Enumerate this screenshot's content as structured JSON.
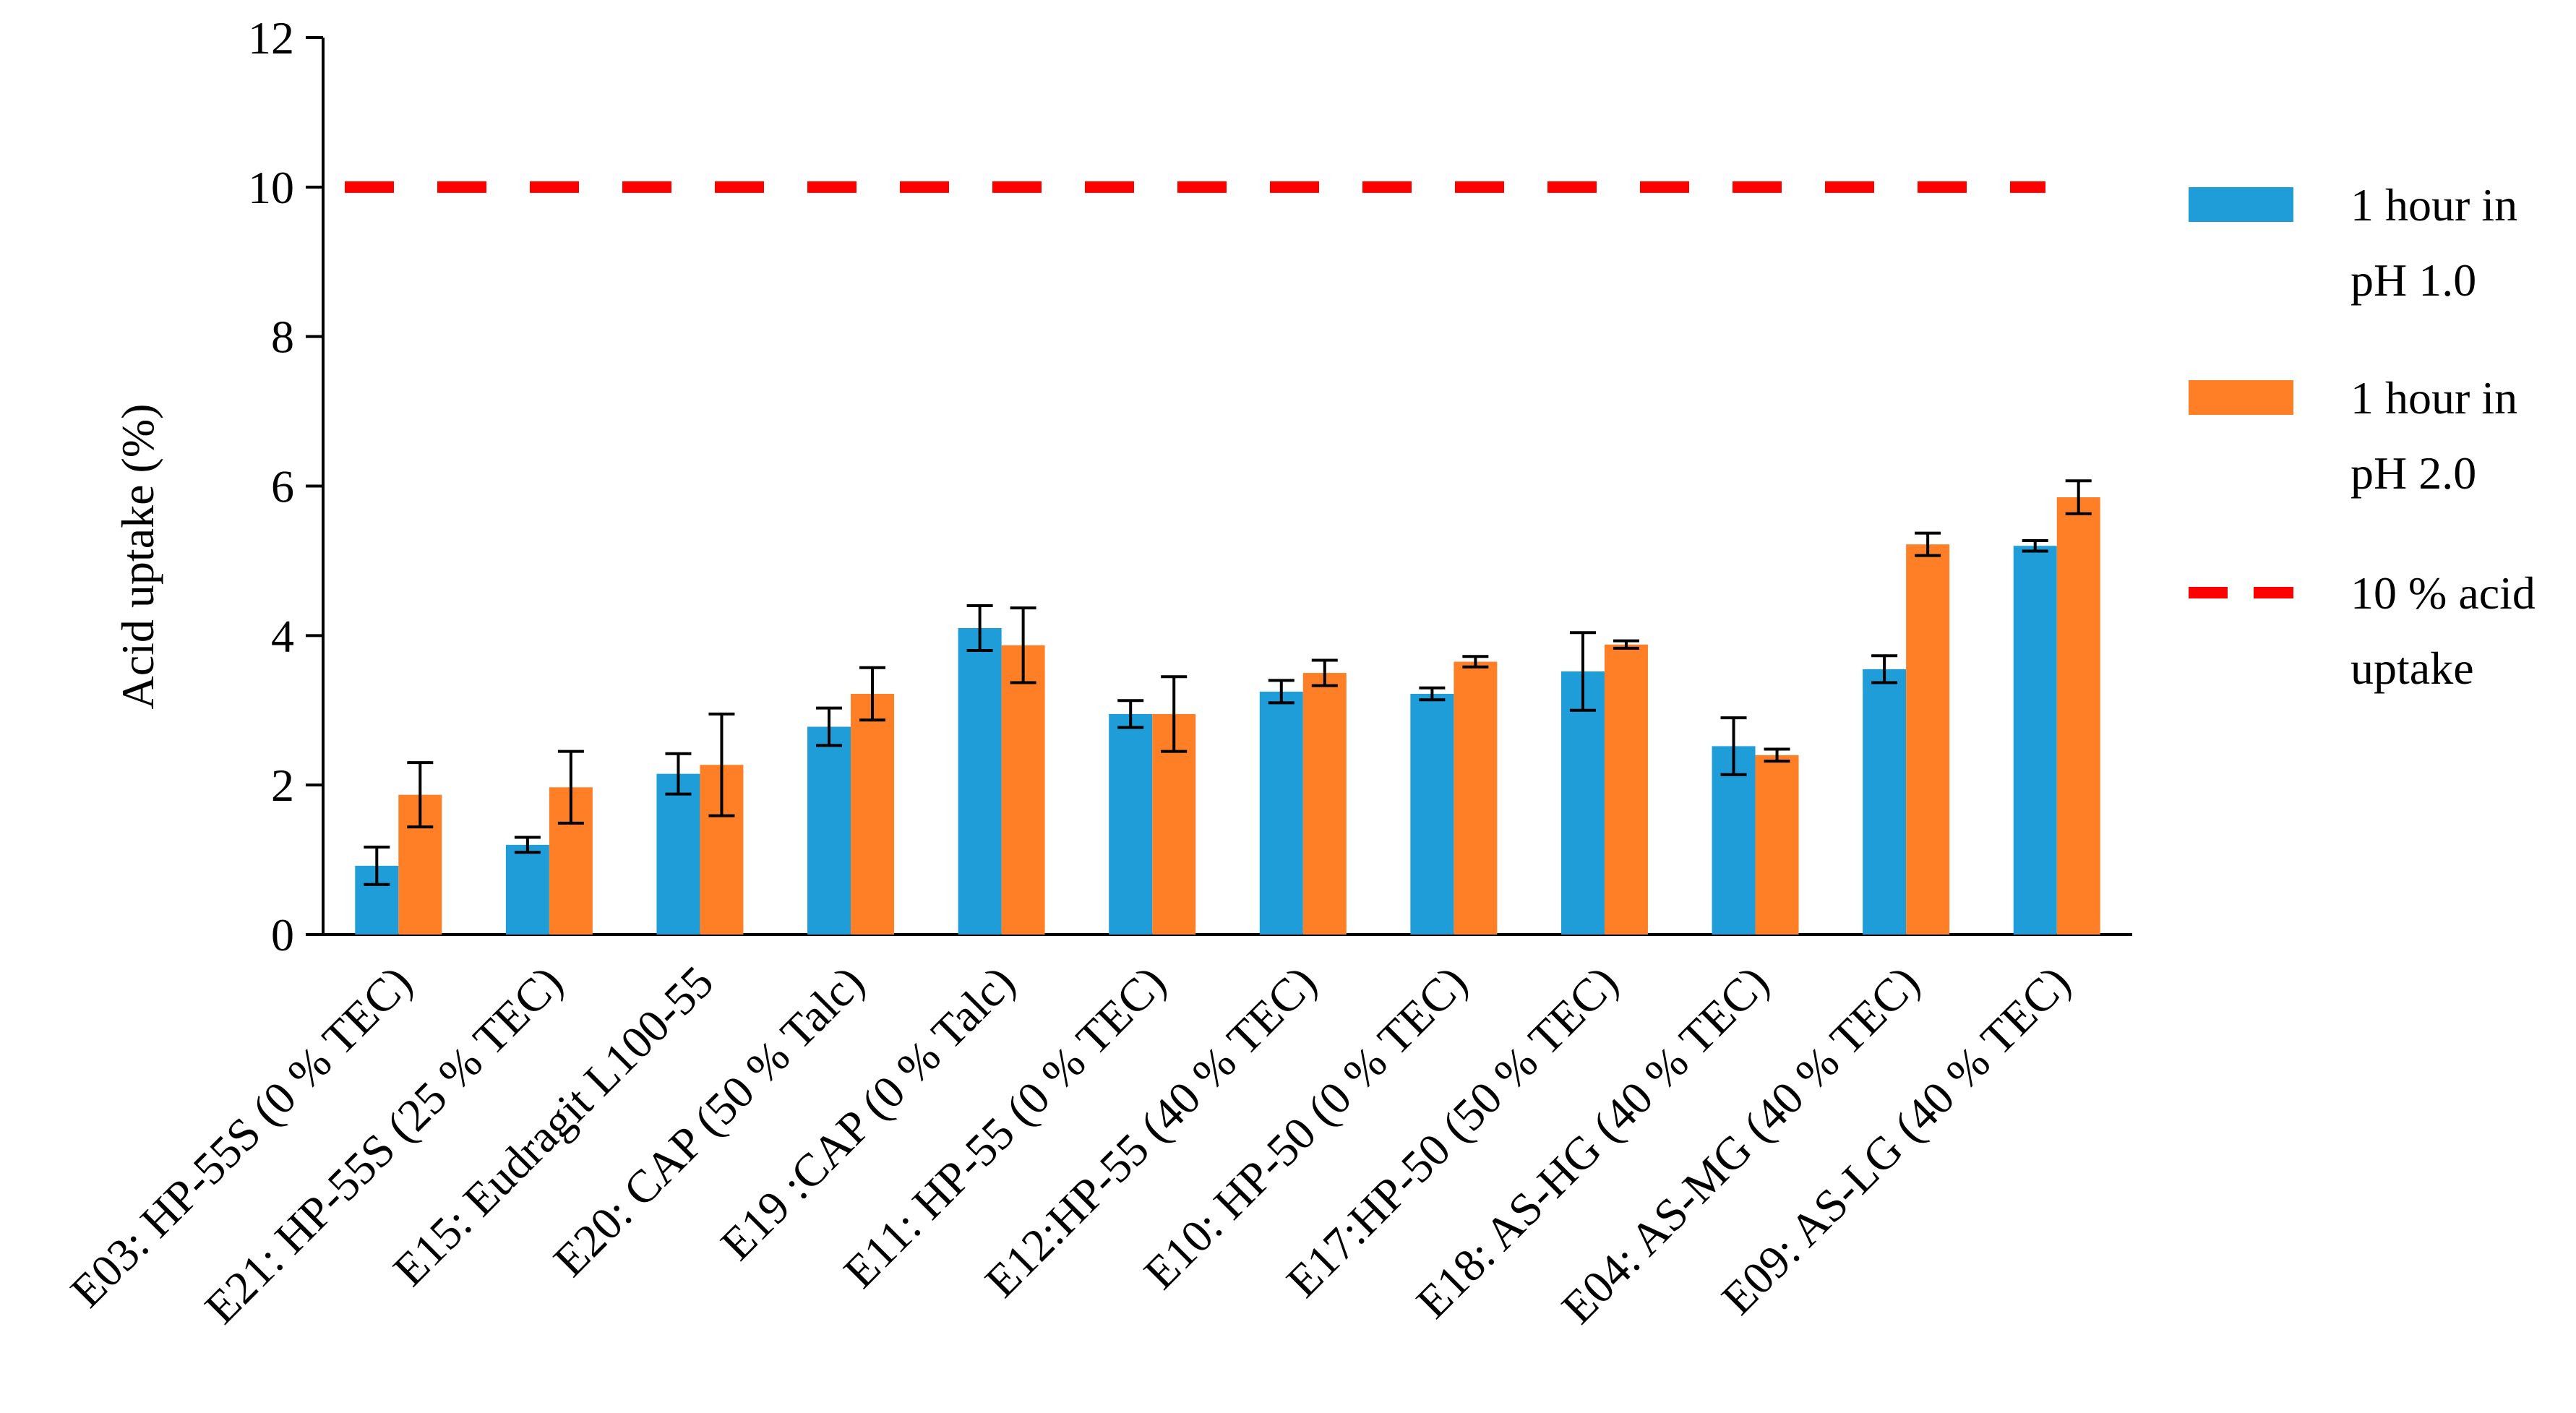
{
  "chart_data": {
    "type": "bar",
    "title": "",
    "xlabel": "",
    "ylabel": "Acid uptake (%)",
    "ylim": [
      0,
      12
    ],
    "yticks": [
      0,
      2,
      4,
      6,
      8,
      10,
      12
    ],
    "grid": false,
    "legend_position": "right",
    "categories": [
      "E03: HP-55S (0 % TEC)",
      "E21: HP-55S (25 % TEC)",
      "E15: Eudragit L100-55",
      "E20: CAP (50 % Talc)",
      "E19 :CAP (0 % Talc)",
      "E11: HP-55 (0 % TEC)",
      "E12:HP-55 (40 % TEC)",
      "E10: HP-50 (0 % TEC)",
      "E17:HP-50 (50 % TEC)",
      "E18: AS-HG (40 % TEC)",
      "E04: AS-MG (40 % TEC)",
      "E09: AS-LG (40 % TEC)"
    ],
    "series": [
      {
        "name": "1 hour in pH 1.0",
        "legend_lines": [
          "1 hour in",
          "pH 1.0"
        ],
        "color": "#1F9DD9",
        "values": [
          0.92,
          1.2,
          2.15,
          2.78,
          4.1,
          2.95,
          3.25,
          3.22,
          3.52,
          2.52,
          3.55,
          5.2
        ],
        "errors": [
          0.25,
          0.1,
          0.27,
          0.25,
          0.3,
          0.18,
          0.15,
          0.08,
          0.52,
          0.38,
          0.18,
          0.07
        ]
      },
      {
        "name": "1 hour in pH 2.0",
        "legend_lines": [
          "1 hour in",
          "pH 2.0"
        ],
        "color": "#FF7F27",
        "values": [
          1.87,
          1.97,
          2.27,
          3.22,
          3.87,
          2.95,
          3.5,
          3.65,
          3.88,
          2.4,
          5.22,
          5.85
        ],
        "errors": [
          0.43,
          0.48,
          0.68,
          0.35,
          0.5,
          0.5,
          0.17,
          0.07,
          0.05,
          0.08,
          0.15,
          0.22
        ]
      }
    ],
    "reference_line": {
      "name": "10 % acid uptake",
      "legend_lines": [
        "10 % acid",
        "uptake"
      ],
      "value": 10,
      "color": "#FF0000",
      "style": "dashed"
    }
  }
}
